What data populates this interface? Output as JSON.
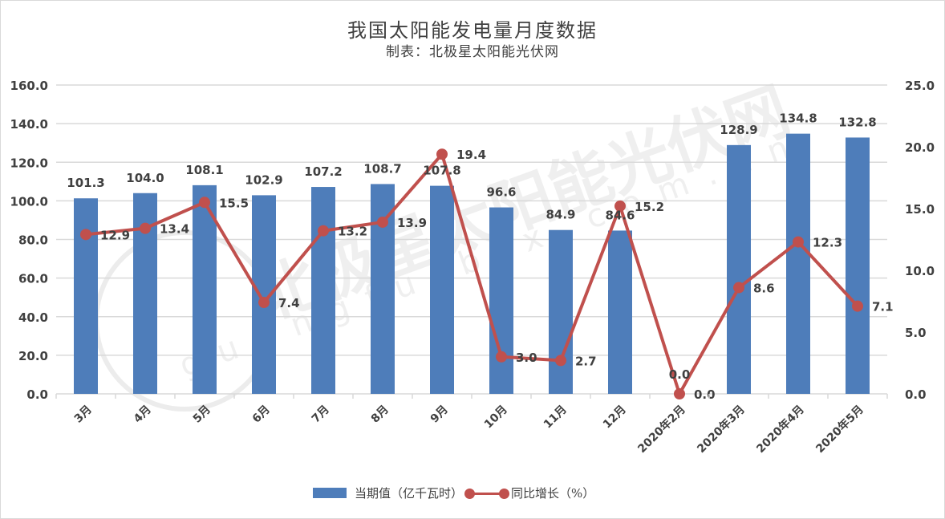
{
  "title": "我国太阳能发电量月度数据",
  "subtitle": "制表：北极星太阳能光伏网",
  "watermark": {
    "text": "北极星太阳能光伏网",
    "url_text": "guangfu.bjx.com.cn"
  },
  "legend": {
    "bar_label": "当期值（亿千瓦时）",
    "line_label": "同比增长（%）"
  },
  "colors": {
    "bar": "#4e7dba",
    "line": "#c0504d",
    "grid": "#d9d9d9",
    "text": "#404040"
  },
  "chart_data": {
    "type": "bar+line",
    "title": "我国太阳能发电量月度数据",
    "subtitle": "制表：北极星太阳能光伏网",
    "categories": [
      "3月",
      "4月",
      "5月",
      "6月",
      "7月",
      "8月",
      "9月",
      "10月",
      "11月",
      "12月",
      "2020年2月",
      "2020年3月",
      "2020年4月",
      "2020年5月"
    ],
    "series": [
      {
        "name": "当期值（亿千瓦时）",
        "type": "bar",
        "axis": "left",
        "values": [
          101.3,
          104.0,
          108.1,
          102.9,
          107.2,
          108.7,
          107.8,
          96.6,
          84.9,
          84.6,
          0.0,
          128.9,
          134.8,
          132.8
        ]
      },
      {
        "name": "同比增长（%）",
        "type": "line",
        "axis": "right",
        "values": [
          12.9,
          13.4,
          15.5,
          7.4,
          13.2,
          13.9,
          19.4,
          3.0,
          2.7,
          15.2,
          0.0,
          8.6,
          12.3,
          7.1
        ]
      }
    ],
    "left_axis": {
      "ylim": [
        0,
        160
      ],
      "ticks": [
        "0.0",
        "20.0",
        "40.0",
        "60.0",
        "80.0",
        "100.0",
        "120.0",
        "140.0",
        "160.0"
      ]
    },
    "right_axis": {
      "ylim": [
        0,
        25
      ],
      "ticks": [
        "0.0",
        "5.0",
        "10.0",
        "15.0",
        "20.0",
        "25.0"
      ]
    },
    "grid": true,
    "legend_position": "bottom"
  }
}
